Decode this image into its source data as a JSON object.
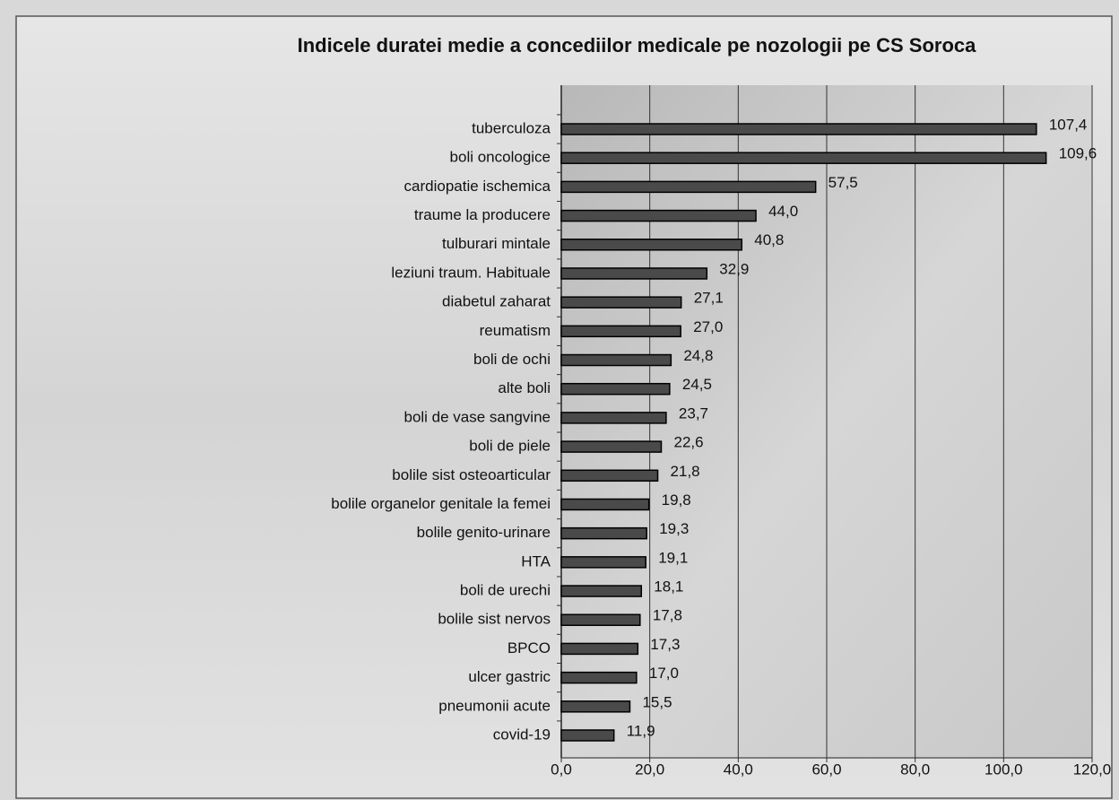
{
  "chart_data": {
    "type": "barh",
    "title": "Indicele duratei medie a concediilor medicale pe nozologii pe CS Soroca",
    "categories": [
      "tuberculoza",
      "boli oncologice",
      "cardiopatie ischemica",
      "traume la producere",
      "tulburari mintale",
      "leziuni traum. Habituale",
      "diabetul zaharat",
      "reumatism",
      "boli de ochi",
      "alte boli",
      "boli de vase sangvine",
      "boli de piele",
      "bolile sist osteoarticular",
      "bolile organelor genitale la femei",
      "bolile genito-urinare",
      "HTA",
      "boli de urechi",
      "bolile sist nervos",
      "BPCO",
      "ulcer gastric",
      "pneumonii acute",
      "covid-19"
    ],
    "values": [
      107.4,
      109.6,
      57.5,
      44.0,
      40.8,
      32.9,
      27.1,
      27.0,
      24.8,
      24.5,
      23.7,
      22.6,
      21.8,
      19.8,
      19.3,
      19.1,
      18.1,
      17.8,
      17.3,
      17.0,
      15.5,
      11.9
    ],
    "value_labels": [
      "107,4",
      "109,6",
      "57,5",
      "44,0",
      "40,8",
      "32,9",
      "27,1",
      "27,0",
      "24,8",
      "24,5",
      "23,7",
      "22,6",
      "21,8",
      "19,8",
      "19,3",
      "19,1",
      "18,1",
      "17,8",
      "17,3",
      "17,0",
      "15,5",
      "11,9"
    ],
    "color": "#4a4a4a",
    "xlim": [
      0,
      120
    ],
    "xticks": [
      {
        "value": 0,
        "label": "0,0"
      },
      {
        "value": 20,
        "label": "20,0"
      },
      {
        "value": 40,
        "label": "40,0"
      },
      {
        "value": 60,
        "label": "60,0"
      },
      {
        "value": 80,
        "label": "80,0"
      },
      {
        "value": 100,
        "label": "100,0"
      },
      {
        "value": 120,
        "label": "120,0"
      }
    ],
    "grid": true
  }
}
